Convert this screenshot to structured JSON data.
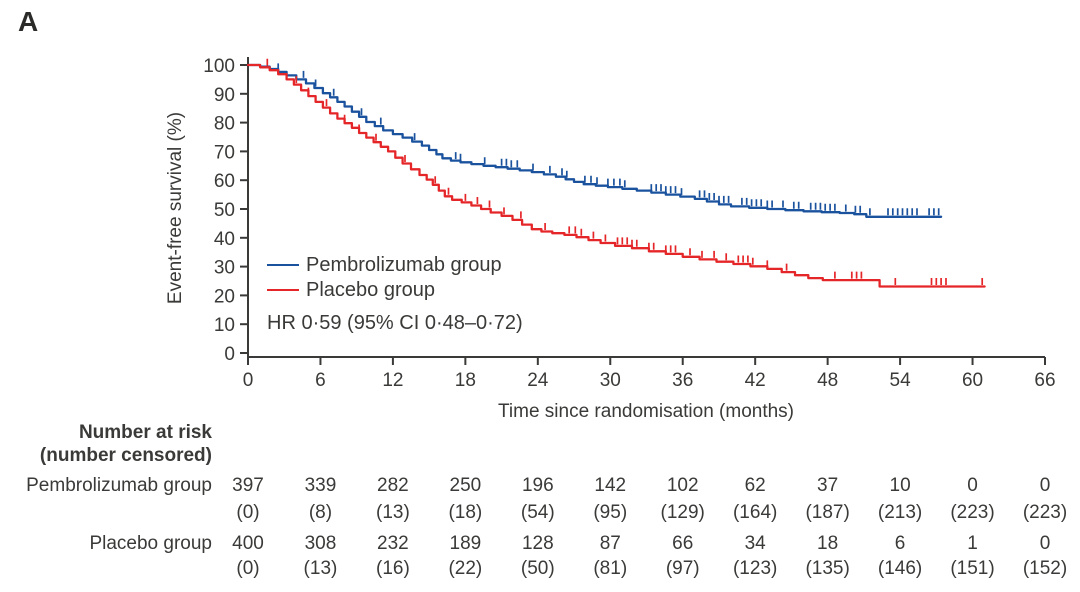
{
  "panel_label": "A",
  "colors": {
    "pembrolizumab": "#1a529e",
    "placebo": "#e52629",
    "axis": "#3a3a38",
    "text": "#3a3a38"
  },
  "legend": {
    "items": [
      {
        "label": "Pembrolizumab group",
        "color_key": "pembrolizumab"
      },
      {
        "label": "Placebo group",
        "color_key": "placebo"
      }
    ],
    "hr_text": "HR 0·59 (95% CI 0·48–0·72)"
  },
  "chart_data": {
    "type": "line",
    "subtype": "kaplan-meier-step",
    "title": "",
    "xlabel": "Time since randomisation (months)",
    "ylabel": "Event-free survival (%)",
    "xlim": [
      0,
      66
    ],
    "ylim": [
      0,
      100
    ],
    "x_ticks": [
      0,
      6,
      12,
      18,
      24,
      30,
      36,
      42,
      48,
      54,
      60,
      66
    ],
    "y_ticks": [
      0,
      10,
      20,
      30,
      40,
      50,
      60,
      70,
      80,
      90,
      100
    ],
    "grid": false,
    "legend_position": "inside-left",
    "annotation": "HR 0·59 (95% CI 0·48–0·72)",
    "series": [
      {
        "name": "Pembrolizumab group",
        "color": "#1a529e",
        "points": [
          [
            0,
            100
          ],
          [
            1,
            99.4
          ],
          [
            1.8,
            98.6
          ],
          [
            2.5,
            97.6
          ],
          [
            3.2,
            96.4
          ],
          [
            4,
            95
          ],
          [
            4.8,
            93.6
          ],
          [
            5.5,
            92
          ],
          [
            6.2,
            90.2
          ],
          [
            6.8,
            88.8
          ],
          [
            7.4,
            87.2
          ],
          [
            8,
            85.6
          ],
          [
            8.6,
            83.8
          ],
          [
            9.2,
            82
          ],
          [
            9.8,
            80.2
          ],
          [
            10.5,
            78.8
          ],
          [
            11.2,
            77.3
          ],
          [
            12,
            76
          ],
          [
            12.8,
            74.8
          ],
          [
            13.6,
            73.4
          ],
          [
            14.4,
            72
          ],
          [
            15,
            70.5
          ],
          [
            15.6,
            69
          ],
          [
            16.1,
            67.6
          ],
          [
            16.8,
            66.8
          ],
          [
            17.6,
            66.2
          ],
          [
            18.5,
            65.6
          ],
          [
            19.5,
            65
          ],
          [
            20.5,
            64.5
          ],
          [
            21.5,
            64
          ],
          [
            22.5,
            63.4
          ],
          [
            23.5,
            62.8
          ],
          [
            24.5,
            62
          ],
          [
            25.5,
            61.2
          ],
          [
            26.3,
            60.3
          ],
          [
            27,
            59.4
          ],
          [
            27.8,
            58.6
          ],
          [
            28.8,
            58.1
          ],
          [
            29.8,
            57.6
          ],
          [
            31,
            57
          ],
          [
            32.2,
            56.4
          ],
          [
            33.4,
            55.7
          ],
          [
            34.6,
            55
          ],
          [
            35.8,
            54.3
          ],
          [
            37,
            53.5
          ],
          [
            38,
            52.6
          ],
          [
            39,
            51.6
          ],
          [
            40,
            50.9
          ],
          [
            41.5,
            50.4
          ],
          [
            43,
            50
          ],
          [
            44.5,
            49.6
          ],
          [
            46,
            49.2
          ],
          [
            47.5,
            48.9
          ],
          [
            49,
            48.6
          ],
          [
            50.2,
            48.2
          ],
          [
            51.2,
            47.3
          ],
          [
            57.4,
            47.3
          ]
        ],
        "censor_marks": [
          2.5,
          4.6,
          5.6,
          7.1,
          9.4,
          11,
          13.8,
          17.2,
          17.6,
          19.6,
          21,
          21.4,
          21.8,
          22.3,
          23.6,
          25,
          26,
          26.4,
          27.9,
          28.4,
          28.9,
          29.8,
          30.3,
          30.8,
          31.2,
          33.4,
          33.8,
          34.2,
          34.6,
          35,
          35.4,
          35.9,
          37.4,
          37.8,
          38.2,
          38.6,
          39,
          39.4,
          39.8,
          40.9,
          41.3,
          41.7,
          42.1,
          42.5,
          43,
          43.4,
          44.3,
          45.2,
          45.6,
          46.6,
          47,
          47.4,
          47.8,
          48.2,
          48.6,
          49.5,
          50.3,
          50.7,
          51.5,
          53,
          53.4,
          53.8,
          54.2,
          54.6,
          55,
          55.4,
          56.4,
          56.8,
          57.2
        ]
      },
      {
        "name": "Placebo group",
        "color": "#e52629",
        "points": [
          [
            0,
            100
          ],
          [
            1,
            99.2
          ],
          [
            1.8,
            98.2
          ],
          [
            2.5,
            96.8
          ],
          [
            3.2,
            95
          ],
          [
            3.8,
            93.2
          ],
          [
            4.4,
            91.2
          ],
          [
            5,
            89.2
          ],
          [
            5.6,
            87.2
          ],
          [
            6.2,
            85.2
          ],
          [
            6.8,
            83.2
          ],
          [
            7.4,
            81.4
          ],
          [
            8,
            79.8
          ],
          [
            8.6,
            78.2
          ],
          [
            9.2,
            76.4
          ],
          [
            9.8,
            74.8
          ],
          [
            10.4,
            73.2
          ],
          [
            11,
            71.6
          ],
          [
            11.6,
            70
          ],
          [
            12.2,
            67.8
          ],
          [
            12.8,
            65.8
          ],
          [
            13.5,
            63.8
          ],
          [
            14.2,
            61.8
          ],
          [
            14.8,
            60.2
          ],
          [
            15.3,
            58.4
          ],
          [
            15.8,
            56.4
          ],
          [
            16.3,
            54.4
          ],
          [
            16.9,
            53.2
          ],
          [
            17.7,
            52.3
          ],
          [
            18.5,
            51.2
          ],
          [
            19.3,
            50
          ],
          [
            20.1,
            48.8
          ],
          [
            21,
            47.6
          ],
          [
            21.9,
            46.2
          ],
          [
            22.7,
            44.6
          ],
          [
            23.5,
            43
          ],
          [
            24.3,
            42.2
          ],
          [
            25.2,
            41.6
          ],
          [
            26.2,
            41
          ],
          [
            27.2,
            40.2
          ],
          [
            28.2,
            39.2
          ],
          [
            29.2,
            38.2
          ],
          [
            30.4,
            37.2
          ],
          [
            31.8,
            36.4
          ],
          [
            33.2,
            35.3
          ],
          [
            34.6,
            34.4
          ],
          [
            36,
            33.4
          ],
          [
            37.4,
            32.5
          ],
          [
            38.8,
            31.7
          ],
          [
            40.2,
            30.9
          ],
          [
            41.6,
            30.1
          ],
          [
            43,
            29.2
          ],
          [
            44.2,
            28.1
          ],
          [
            45.3,
            27
          ],
          [
            46.4,
            26
          ],
          [
            47.6,
            25.3
          ],
          [
            52.3,
            23.1
          ],
          [
            61,
            23.1
          ]
        ],
        "censor_marks": [
          1.6,
          4,
          5,
          6.5,
          8,
          9.2,
          10.6,
          13,
          15.5,
          16.6,
          18,
          19,
          20,
          21.2,
          22.6,
          24.6,
          26.6,
          27.1,
          27.6,
          28.6,
          29.6,
          30.6,
          31,
          31.4,
          31.8,
          32.2,
          33.2,
          33.6,
          34.6,
          35,
          35.4,
          36.6,
          37.6,
          38.6,
          39.6,
          40.6,
          41,
          41.4,
          41.8,
          43,
          44.6,
          48.6,
          50,
          50.4,
          50.8,
          53.6,
          56.6,
          57,
          57.4,
          57.8,
          60.8
        ]
      }
    ]
  },
  "risk_table": {
    "header_line1": "Number at risk",
    "header_line2": "(number censored)",
    "time_points": [
      0,
      6,
      12,
      18,
      24,
      30,
      36,
      42,
      48,
      54,
      60,
      66
    ],
    "rows": [
      {
        "label": "Pembrolizumab group",
        "at_risk": [
          "397",
          "339",
          "282",
          "250",
          "196",
          "142",
          "102",
          "62",
          "37",
          "10",
          "0",
          "0"
        ],
        "censored": [
          "(0)",
          "(8)",
          "(13)",
          "(18)",
          "(54)",
          "(95)",
          "(129)",
          "(164)",
          "(187)",
          "(213)",
          "(223)",
          "(223)"
        ]
      },
      {
        "label": "Placebo group",
        "at_risk": [
          "400",
          "308",
          "232",
          "189",
          "128",
          "87",
          "66",
          "34",
          "18",
          "6",
          "1",
          "0"
        ],
        "censored": [
          "(0)",
          "(13)",
          "(16)",
          "(22)",
          "(50)",
          "(81)",
          "(97)",
          "(123)",
          "(135)",
          "(146)",
          "(151)",
          "(152)"
        ]
      }
    ]
  }
}
